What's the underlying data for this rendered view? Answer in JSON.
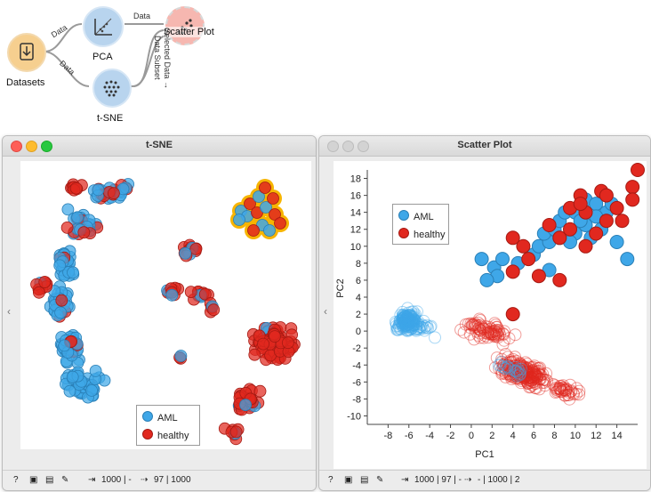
{
  "workflow": {
    "nodes": [
      {
        "label": "Datasets",
        "icon": "datasets-icon"
      },
      {
        "label": "PCA",
        "icon": "pca-icon"
      },
      {
        "label": "t-SNE",
        "icon": "tsne-icon"
      },
      {
        "label": "Scatter Plot",
        "icon": "scatter-plot-icon"
      }
    ],
    "links": {
      "datasets_pca": "Data",
      "datasets_tsne": "Data",
      "pca_scatter": "Data",
      "tsne_scatter_1": "Selected Data →",
      "tsne_scatter_2": "Data Subset"
    },
    "colors": {
      "datasets": "#f6cf8f",
      "pca": "#b8d4ee",
      "tsne": "#b8d4ee",
      "scatter": "#f6b7b0"
    }
  },
  "tsne_window": {
    "title": "t-SNE",
    "legend": [
      "AML",
      "healthy"
    ],
    "status": {
      "input": "1000 | -",
      "output": "97 | 1000"
    }
  },
  "scatter_window": {
    "title": "Scatter Plot",
    "legend": [
      "AML",
      "healthy"
    ],
    "status": {
      "input": "1000 | 97 | -",
      "output": "- | 1000 | 2"
    }
  },
  "colors": {
    "aml": "#3fa7e8",
    "healthy": "#e1281f",
    "selection": "#f7b400"
  },
  "chart_data": {
    "type": "scatter",
    "xlabel": "PC1",
    "ylabel": "PC2",
    "xlim": [
      -10,
      16
    ],
    "ylim": [
      -11,
      19
    ],
    "x_ticks": [
      -8,
      -6,
      -4,
      -2,
      0,
      2,
      4,
      6,
      8,
      10,
      12,
      14
    ],
    "y_ticks": [
      -10,
      -8,
      -6,
      -4,
      -2,
      0,
      2,
      4,
      6,
      8,
      10,
      12,
      14,
      16,
      18
    ],
    "legend_position": "top-left",
    "series": [
      {
        "name": "AML",
        "subset": [
          [
            1,
            8.5
          ],
          [
            2.2,
            7.5
          ],
          [
            3,
            8.5
          ],
          [
            2.5,
            6.5
          ],
          [
            1.5,
            6
          ],
          [
            4.5,
            8
          ],
          [
            6,
            9
          ],
          [
            6.5,
            10
          ],
          [
            7.5,
            10.5
          ],
          [
            7,
            11.5
          ],
          [
            8,
            12
          ],
          [
            8.5,
            13
          ],
          [
            9,
            14
          ],
          [
            10,
            14
          ],
          [
            11,
            15.5
          ],
          [
            12,
            15
          ],
          [
            13,
            14
          ],
          [
            10,
            11.5
          ],
          [
            11,
            12.5
          ],
          [
            12,
            13.5
          ],
          [
            9.5,
            10.5
          ],
          [
            14,
            10.5
          ],
          [
            15,
            8.5
          ],
          [
            10.5,
            13
          ],
          [
            11.5,
            11
          ],
          [
            12.5,
            12
          ],
          [
            13.5,
            15
          ],
          [
            8.5,
            11
          ],
          [
            7.5,
            7.2
          ]
        ]
      },
      {
        "name": "healthy",
        "subset": [
          [
            4,
            11
          ],
          [
            5,
            10
          ],
          [
            4,
            7
          ],
          [
            6.5,
            6.5
          ],
          [
            5.5,
            8.5
          ],
          [
            8.5,
            11
          ],
          [
            9.5,
            14.5
          ],
          [
            10.5,
            16
          ],
          [
            11,
            14
          ],
          [
            12.5,
            16.5
          ],
          [
            13,
            16
          ],
          [
            14,
            14.5
          ],
          [
            15.5,
            17
          ],
          [
            16,
            19
          ],
          [
            15.5,
            15.5
          ],
          [
            13,
            13
          ],
          [
            12,
            11.5
          ],
          [
            11,
            10
          ],
          [
            9.5,
            12
          ],
          [
            8.5,
            6
          ],
          [
            4,
            2
          ],
          [
            10.5,
            15
          ],
          [
            14.5,
            13
          ],
          [
            7.5,
            12.5
          ]
        ]
      }
    ]
  }
}
